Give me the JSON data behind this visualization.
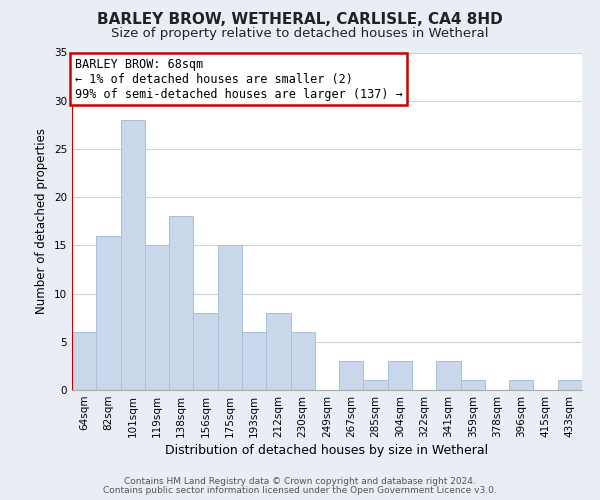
{
  "title": "BARLEY BROW, WETHERAL, CARLISLE, CA4 8HD",
  "subtitle": "Size of property relative to detached houses in Wetheral",
  "xlabel": "Distribution of detached houses by size in Wetheral",
  "ylabel": "Number of detached properties",
  "bar_labels": [
    "64sqm",
    "82sqm",
    "101sqm",
    "119sqm",
    "138sqm",
    "156sqm",
    "175sqm",
    "193sqm",
    "212sqm",
    "230sqm",
    "249sqm",
    "267sqm",
    "285sqm",
    "304sqm",
    "322sqm",
    "341sqm",
    "359sqm",
    "378sqm",
    "396sqm",
    "415sqm",
    "433sqm"
  ],
  "bar_values": [
    6,
    16,
    28,
    15,
    18,
    8,
    15,
    6,
    8,
    6,
    0,
    3,
    1,
    3,
    0,
    3,
    1,
    0,
    1,
    0,
    1
  ],
  "bar_color": "#c8d8ea",
  "bar_edge_color": "#a8c0d8",
  "ylim": [
    0,
    35
  ],
  "yticks": [
    0,
    5,
    10,
    15,
    20,
    25,
    30,
    35
  ],
  "annotation_title": "BARLEY BROW: 68sqm",
  "annotation_line1": "← 1% of detached houses are smaller (2)",
  "annotation_line2": "99% of semi-detached houses are larger (137) →",
  "annotation_box_color": "#ffffff",
  "annotation_box_edge": "#cc0000",
  "red_line_color": "#cc0000",
  "footer_line1": "Contains HM Land Registry data © Crown copyright and database right 2024.",
  "footer_line2": "Contains public sector information licensed under the Open Government Licence v3.0.",
  "background_color": "#e8eef4",
  "plot_bg_color": "#ffffff",
  "grid_color": "#c8d4dc",
  "title_fontsize": 11,
  "subtitle_fontsize": 9.5,
  "xlabel_fontsize": 9,
  "ylabel_fontsize": 8.5,
  "tick_fontsize": 7.5,
  "annotation_title_fontsize": 9,
  "annotation_body_fontsize": 8.5,
  "footer_fontsize": 6.5
}
